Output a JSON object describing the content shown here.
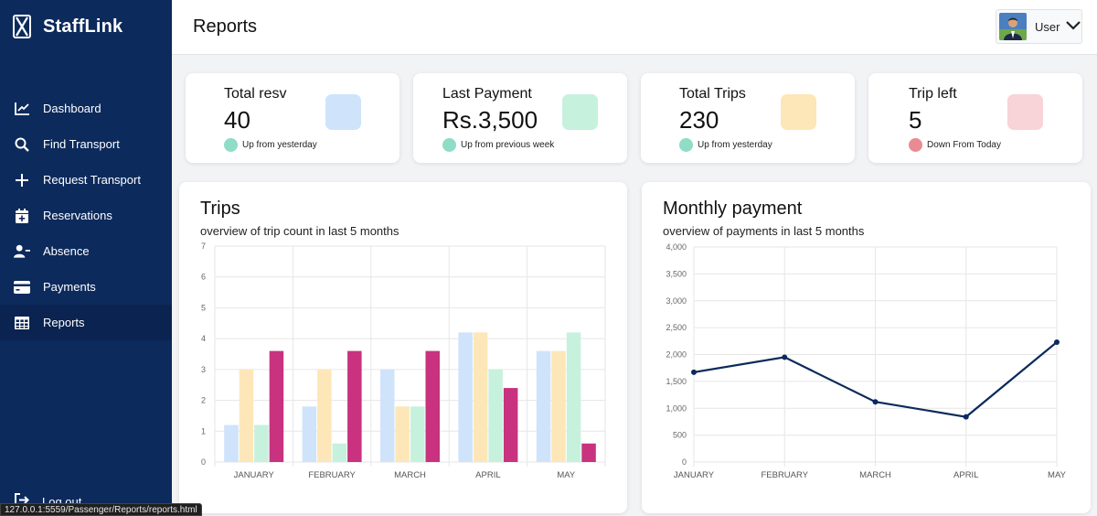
{
  "app": {
    "brand": "StaffLink",
    "page_title": "Reports",
    "user": "User"
  },
  "sidebar": {
    "items": [
      {
        "label": "Dashboard",
        "icon": "chart-line-icon"
      },
      {
        "label": "Find Transport",
        "icon": "search-icon"
      },
      {
        "label": "Request Transport",
        "icon": "plus-icon"
      },
      {
        "label": "Reservations",
        "icon": "calendar-plus-icon"
      },
      {
        "label": "Absence",
        "icon": "user-minus-icon"
      },
      {
        "label": "Payments",
        "icon": "credit-card-icon"
      },
      {
        "label": "Reports",
        "icon": "table-icon",
        "active": true
      }
    ],
    "logout": "Log out"
  },
  "status_url": "127.0.0.1:5559/Passenger/Reports/reports.html",
  "stats": [
    {
      "label": "Total resv",
      "value": "40",
      "trend": "Up from yesterday",
      "swatch": "#cfe3fb",
      "dot": "#8fdcc7"
    },
    {
      "label": "Last Payment",
      "value": "Rs.3,500",
      "trend": "Up from previous week",
      "swatch": "#c6f1dd",
      "dot": "#8fdcc7"
    },
    {
      "label": "Total Trips",
      "value": "230",
      "trend": "Up from yesterday",
      "swatch": "#fde7b8",
      "dot": "#8fdcc7"
    },
    {
      "label": "Trip left",
      "value": "5",
      "trend": "Down From Today",
      "swatch": "#f8d3d8",
      "dot": "#ea8b94"
    }
  ],
  "charts": {
    "trips": {
      "title": "Trips",
      "subtitle": "overview of trip count in last 5 months"
    },
    "payments": {
      "title": "Monthly payment",
      "subtitle": "overview of payments in last 5 months"
    }
  },
  "chart_data": [
    {
      "type": "bar",
      "title": "Trips",
      "subtitle": "overview of trip count in last 5 months",
      "categories": [
        "JANUARY",
        "FEBRUARY",
        "MARCH",
        "APRIL",
        "MAY"
      ],
      "ylim": [
        0,
        7
      ],
      "yticks": [
        0,
        1,
        2,
        3,
        4,
        5,
        6,
        7
      ],
      "grid": true,
      "series": [
        {
          "color": "#cfe3fb",
          "values": [
            1.2,
            1.8,
            3.0,
            4.2,
            3.6
          ]
        },
        {
          "color": "#fde7b8",
          "values": [
            3.0,
            3.0,
            1.8,
            4.2,
            3.6
          ]
        },
        {
          "color": "#c6f1dd",
          "values": [
            1.2,
            0.6,
            1.8,
            3.0,
            4.2
          ]
        },
        {
          "color": "#c8327f",
          "values": [
            3.6,
            3.6,
            3.6,
            2.4,
            0.6
          ]
        }
      ]
    },
    {
      "type": "line",
      "title": "Monthly payment",
      "subtitle": "overview of payments in last 5 months",
      "categories": [
        "JANUARY",
        "FEBRUARY",
        "MARCH",
        "APRIL",
        "MAY"
      ],
      "ylim": [
        0,
        4000
      ],
      "yticks": [
        "0",
        "500",
        "1,000",
        "1,500",
        "2,000",
        "2,500",
        "3,000",
        "3,500",
        "4,000"
      ],
      "grid": true,
      "series": [
        {
          "color": "#0c2a5c",
          "values": [
            1670,
            1950,
            1120,
            840,
            2230
          ]
        }
      ]
    }
  ]
}
